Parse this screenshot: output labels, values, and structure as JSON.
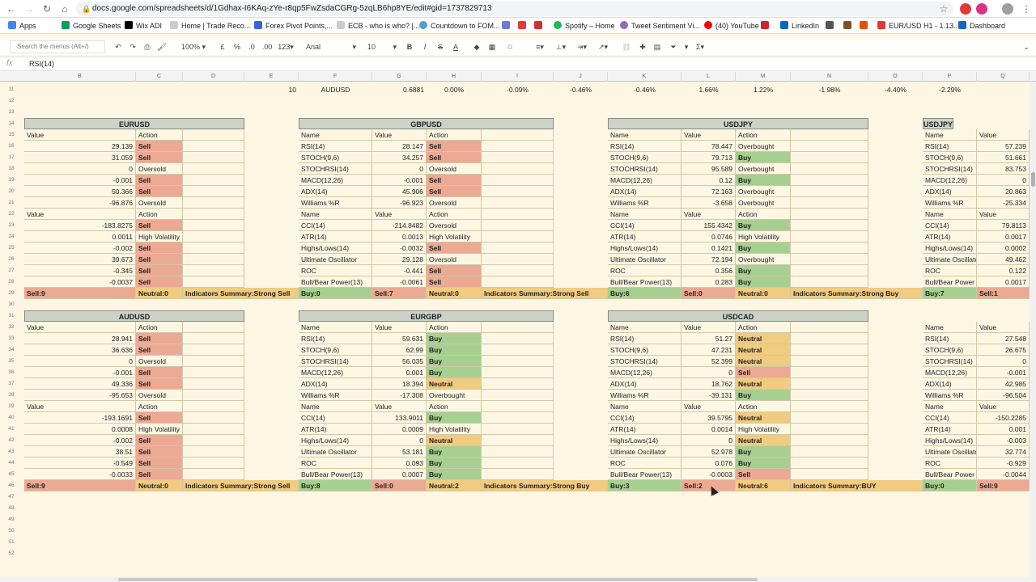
{
  "browser": {
    "url": "docs.google.com/spreadsheets/d/1Gdhax-I6KAq-zYe-r8qp5FwZsdaCGRg-5zqLB6hp8YE/edit#gid=1737829713"
  },
  "bookmarks": [
    {
      "label": "Apps",
      "color": "#4285f4"
    },
    {
      "label": "Google Sheets",
      "color": "#0f9d58"
    },
    {
      "label": "Wix ADI",
      "color": "#000000"
    },
    {
      "label": "Home | Trade Reco...",
      "color": "#cccccc"
    },
    {
      "label": "Forex Pivot Points,...",
      "color": "#3367d6"
    },
    {
      "label": "ECB - who is who? |...",
      "color": "#cccccc"
    },
    {
      "label": "Countdown to FOM...",
      "color": "#4b9fd5"
    },
    {
      "label": "Spotify – Home",
      "color": "#1db954"
    },
    {
      "label": "Tweet Sentiment Vi...",
      "color": "#8a6fb8"
    },
    {
      "label": "(40) YouTube",
      "color": "#ff0000"
    },
    {
      "label": "LinkedIn",
      "color": "#0a66c2"
    },
    {
      "label": "EUR/USD H1 - 1.13...",
      "color": "#e03a2f"
    },
    {
      "label": "Dashboard",
      "color": "#1565c0"
    }
  ],
  "toolbar": {
    "menu_search_placeholder": "Search the menus (Alt+/)",
    "zoom": "100%",
    "currency": "£",
    "percent": "%",
    "dec_less": ".0",
    "dec_more": ".00",
    "format_more": "123",
    "font": "Arial",
    "font_size": "10",
    "bold": "B",
    "italic": "I",
    "strike": "S",
    "text_color": "A",
    "sigma": "Σ"
  },
  "formula": {
    "fx": "fx",
    "text": "RSI(14)"
  },
  "columns": [
    "B",
    "C",
    "D",
    "E",
    "F",
    "G",
    "H",
    "I",
    "J",
    "K",
    "L",
    "M",
    "N",
    "O",
    "P",
    "Q"
  ],
  "row_numbers": [
    "11",
    "12",
    "13",
    "14",
    "15",
    "16",
    "17",
    "18",
    "19",
    "20",
    "21",
    "22",
    "23",
    "24",
    "25",
    "26",
    "27",
    "28",
    "29",
    "30",
    "31",
    "32",
    "33",
    "34",
    "35",
    "36",
    "37",
    "38",
    "39",
    "40",
    "41",
    "42",
    "43",
    "44",
    "45",
    "46",
    "47",
    "48",
    "49",
    "50",
    "51",
    "52"
  ],
  "row11": [
    "10",
    "AUDUSD",
    "0.6881",
    "0.00%",
    "-0.09%",
    "-0.46%",
    "-0.46%",
    "1.66%",
    "1.22%",
    "-1.98%",
    "-4.40%",
    "-2.29%"
  ],
  "common": {
    "name_h": "Name",
    "value_h": "Value",
    "action_h": "Action"
  },
  "tables": {
    "eurusd": {
      "title": "EURUSD",
      "osc": [
        {
          "v": "29.139",
          "a": "Sell"
        },
        {
          "v": "31.059",
          "a": "Sell"
        },
        {
          "v": "0",
          "a": "Oversold"
        },
        {
          "v": "-0.001",
          "a": "Sell"
        },
        {
          "v": "50.366",
          "a": "Sell"
        },
        {
          "v": "-96.876",
          "a": "Oversold"
        }
      ],
      "ma": [
        {
          "v": "-183.8275",
          "a": "Sell"
        },
        {
          "v": "0.0011",
          "a": "High Volatility"
        },
        {
          "v": "-0.002",
          "a": "Sell"
        },
        {
          "v": "39.673",
          "a": "Sell"
        },
        {
          "v": "-0.345",
          "a": "Sell"
        },
        {
          "v": "-0.0037",
          "a": "Sell"
        }
      ],
      "summary": {
        "c1": "Sell:9",
        "c2": "Neutral:0",
        "c3": "Indicators Summary:Strong Sell"
      }
    },
    "gbpusd": {
      "title": "GBPUSD",
      "osc": [
        {
          "n": "RSI(14)",
          "v": "28.147",
          "a": "Sell"
        },
        {
          "n": "STOCH(9,6)",
          "v": "34.257",
          "a": "Sell"
        },
        {
          "n": "STOCHRSI(14)",
          "v": "0",
          "a": "Oversold"
        },
        {
          "n": "MACD(12,26)",
          "v": "-0.001",
          "a": "Sell"
        },
        {
          "n": "ADX(14)",
          "v": "45.906",
          "a": "Sell"
        },
        {
          "n": "Williams %R",
          "v": "-96.923",
          "a": "Oversold"
        }
      ],
      "ma": [
        {
          "n": "CCI(14)",
          "v": "-214.8482",
          "a": "Oversold"
        },
        {
          "n": "ATR(14)",
          "v": "0.0013",
          "a": "High Volatility"
        },
        {
          "n": "Highs/Lows(14)",
          "v": "-0.0032",
          "a": "Sell"
        },
        {
          "n": "Ultimate Oscillator",
          "v": "29.128",
          "a": "Oversold"
        },
        {
          "n": "ROC",
          "v": "-0.441",
          "a": "Sell"
        },
        {
          "n": "Bull/Bear Power(13)",
          "v": "-0.0061",
          "a": "Sell"
        }
      ],
      "summary": {
        "c1": "Buy:0",
        "c2": "Sell:7",
        "c3": "Neutral:0",
        "c4": "Indicators Summary:Strong Sell"
      }
    },
    "usdjpy": {
      "title": "USDJPY",
      "osc": [
        {
          "n": "RSI(14)",
          "v": "78.447",
          "a": "Overbought"
        },
        {
          "n": "STOCH(9,6)",
          "v": "79.713",
          "a": "Buy"
        },
        {
          "n": "STOCHRSI(14)",
          "v": "95.589",
          "a": "Overbought"
        },
        {
          "n": "MACD(12,26)",
          "v": "0.12",
          "a": "Buy"
        },
        {
          "n": "ADX(14)",
          "v": "72.163",
          "a": "Overbought"
        },
        {
          "n": "Williams %R",
          "v": "-3.658",
          "a": "Overbought"
        }
      ],
      "ma": [
        {
          "n": "CCI(14)",
          "v": "155.4342",
          "a": "Buy"
        },
        {
          "n": "ATR(14)",
          "v": "0.0746",
          "a": "High Volatility"
        },
        {
          "n": "Highs/Lows(14)",
          "v": "0.1421",
          "a": "Buy"
        },
        {
          "n": "Ultimate Oscillator",
          "v": "72.194",
          "a": "Overbought"
        },
        {
          "n": "ROC",
          "v": "0.356",
          "a": "Buy"
        },
        {
          "n": "Bull/Bear Power(13)",
          "v": "0.283",
          "a": "Buy"
        }
      ],
      "summary": {
        "c1": "Buy:6",
        "c2": "Sell:0",
        "c3": "Neutral:0",
        "c4": "Indicators Summary:Strong Buy"
      }
    },
    "usdjpy2": {
      "title": "USDJPY",
      "osc": [
        {
          "n": "RSI(14)",
          "v": "57.239"
        },
        {
          "n": "STOCH(9,6)",
          "v": "51.661"
        },
        {
          "n": "STOCHRSI(14)",
          "v": "83.753"
        },
        {
          "n": "MACD(12,26)",
          "v": "0"
        },
        {
          "n": "ADX(14)",
          "v": "20.863"
        },
        {
          "n": "Williams %R",
          "v": "-25.334"
        }
      ],
      "ma": [
        {
          "n": "CCI(14)",
          "v": "79.8113"
        },
        {
          "n": "ATR(14)",
          "v": "0.0017"
        },
        {
          "n": "Highs/Lows(14)",
          "v": "0.0002"
        },
        {
          "n": "Ultimate Oscillato",
          "v": "49.462"
        },
        {
          "n": "ROC",
          "v": "0.122"
        },
        {
          "n": "Bull/Bear Power",
          "v": "0.0017"
        }
      ],
      "summary": {
        "c1": "Buy:7",
        "c2": "Sell:1"
      }
    },
    "audusd": {
      "title": "AUDUSD",
      "osc": [
        {
          "v": "28.941",
          "a": "Sell"
        },
        {
          "v": "36.636",
          "a": "Sell"
        },
        {
          "v": "0",
          "a": "Oversold"
        },
        {
          "v": "-0.001",
          "a": "Sell"
        },
        {
          "v": "49.336",
          "a": "Sell"
        },
        {
          "v": "-95.653",
          "a": "Oversold"
        }
      ],
      "ma": [
        {
          "v": "-193.1691",
          "a": "Sell"
        },
        {
          "v": "0.0008",
          "a": "High Volatility"
        },
        {
          "v": "-0.002",
          "a": "Sell"
        },
        {
          "v": "38.51",
          "a": "Sell"
        },
        {
          "v": "-0.549",
          "a": "Sell"
        },
        {
          "v": "-0.0033",
          "a": "Sell"
        }
      ],
      "summary": {
        "c1": "Sell:9",
        "c2": "Neutral:0",
        "c3": "Indicators Summary:Strong Sell"
      }
    },
    "eurgbp": {
      "title": "EURGBP",
      "osc": [
        {
          "n": "RSI(14)",
          "v": "59.631",
          "a": "Buy"
        },
        {
          "n": "STOCH(9,6)",
          "v": "62.99",
          "a": "Buy"
        },
        {
          "n": "STOCHRSI(14)",
          "v": "56.035",
          "a": "Buy"
        },
        {
          "n": "MACD(12,26)",
          "v": "0.001",
          "a": "Buy"
        },
        {
          "n": "ADX(14)",
          "v": "18.394",
          "a": "Neutral"
        },
        {
          "n": "Williams %R",
          "v": "-17.308",
          "a": "Overbought"
        }
      ],
      "ma": [
        {
          "n": "CCI(14)",
          "v": "133.9011",
          "a": "Buy"
        },
        {
          "n": "ATR(14)",
          "v": "0.0009",
          "a": "High Volatility"
        },
        {
          "n": "Highs/Lows(14)",
          "v": "0",
          "a": "Neutral"
        },
        {
          "n": "Ultimate Oscillator",
          "v": "53.181",
          "a": "Buy"
        },
        {
          "n": "ROC",
          "v": "0.093",
          "a": "Buy"
        },
        {
          "n": "Bull/Bear Power(13)",
          "v": "0.0007",
          "a": "Buy"
        }
      ],
      "summary": {
        "c1": "Buy:8",
        "c2": "Sell:0",
        "c3": "Neutral:2",
        "c4": "Indicators Summary:Strong Buy"
      }
    },
    "usdcad": {
      "title": "USDCAD",
      "osc": [
        {
          "n": "RSI(14)",
          "v": "51.27",
          "a": "Neutral"
        },
        {
          "n": "STOCH(9,6)",
          "v": "47.231",
          "a": "Neutral"
        },
        {
          "n": "STOCHRSI(14)",
          "v": "52.399",
          "a": "Neutral"
        },
        {
          "n": "MACD(12,26)",
          "v": "0",
          "a": "Sell"
        },
        {
          "n": "ADX(14)",
          "v": "18.762",
          "a": "Neutral"
        },
        {
          "n": "Williams %R",
          "v": "-39.131",
          "a": "Buy"
        }
      ],
      "ma": [
        {
          "n": "CCI(14)",
          "v": "39.5795",
          "a": "Neutral"
        },
        {
          "n": "ATR(14)",
          "v": "0.0014",
          "a": "High Volatility"
        },
        {
          "n": "Highs/Lows(14)",
          "v": "0",
          "a": "Neutral"
        },
        {
          "n": "Ultimate Oscillator",
          "v": "52.978",
          "a": "Buy"
        },
        {
          "n": "ROC",
          "v": "0.076",
          "a": "Buy"
        },
        {
          "n": "Bull/Bear Power(13)",
          "v": "-0.0003",
          "a": "Sell"
        }
      ],
      "summary": {
        "c1": "Buy:3",
        "c2": "Sell:2",
        "c3": "Neutral:6",
        "c4": "Indicators Summary:BUY"
      }
    },
    "right2": {
      "osc": [
        {
          "n": "RSI(14)",
          "v": "27.548"
        },
        {
          "n": "STOCH(9,6)",
          "v": "26.675"
        },
        {
          "n": "STOCHRSI(14)",
          "v": "0"
        },
        {
          "n": "MACD(12,26)",
          "v": "-0.001"
        },
        {
          "n": "ADX(14)",
          "v": "42.985"
        },
        {
          "n": "Williams %R",
          "v": "-96.504"
        }
      ],
      "ma": [
        {
          "n": "CCI(14)",
          "v": "-150.2285"
        },
        {
          "n": "ATR(14)",
          "v": "0.001"
        },
        {
          "n": "Highs/Lows(14)",
          "v": "-0.003"
        },
        {
          "n": "Ultimate Oscillato",
          "v": "32.774"
        },
        {
          "n": "ROC",
          "v": "-0.929"
        },
        {
          "n": "Bull/Bear Power",
          "v": "-0.0044"
        }
      ],
      "summary": {
        "c1": "Buy:0",
        "c2": "Sell:9"
      }
    }
  }
}
